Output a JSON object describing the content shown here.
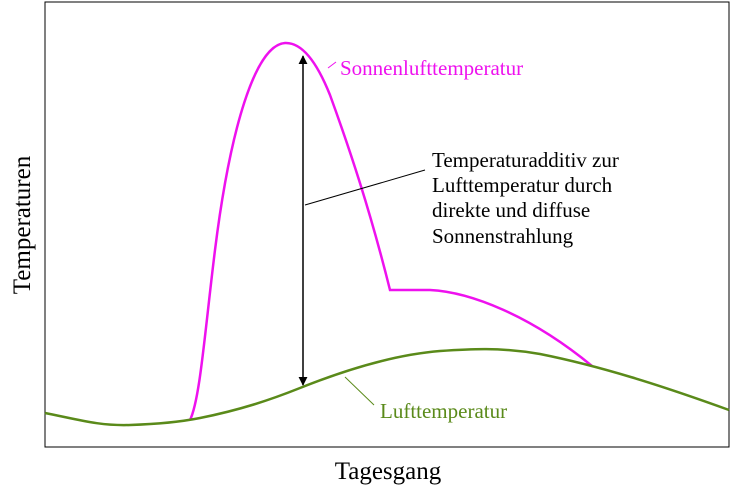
{
  "axes": {
    "x_label": "Tagesgang",
    "y_label": "Temperaturen"
  },
  "curves": [
    {
      "label": "Sonnenlufttemperatur"
    },
    {
      "label": "Lufttemperatur"
    }
  ],
  "annotation": {
    "lines": [
      "Temperaturadditiv zur",
      "Lufttemperatur durch",
      "direkte und diffuse",
      "Sonnenstrahlung"
    ]
  }
}
